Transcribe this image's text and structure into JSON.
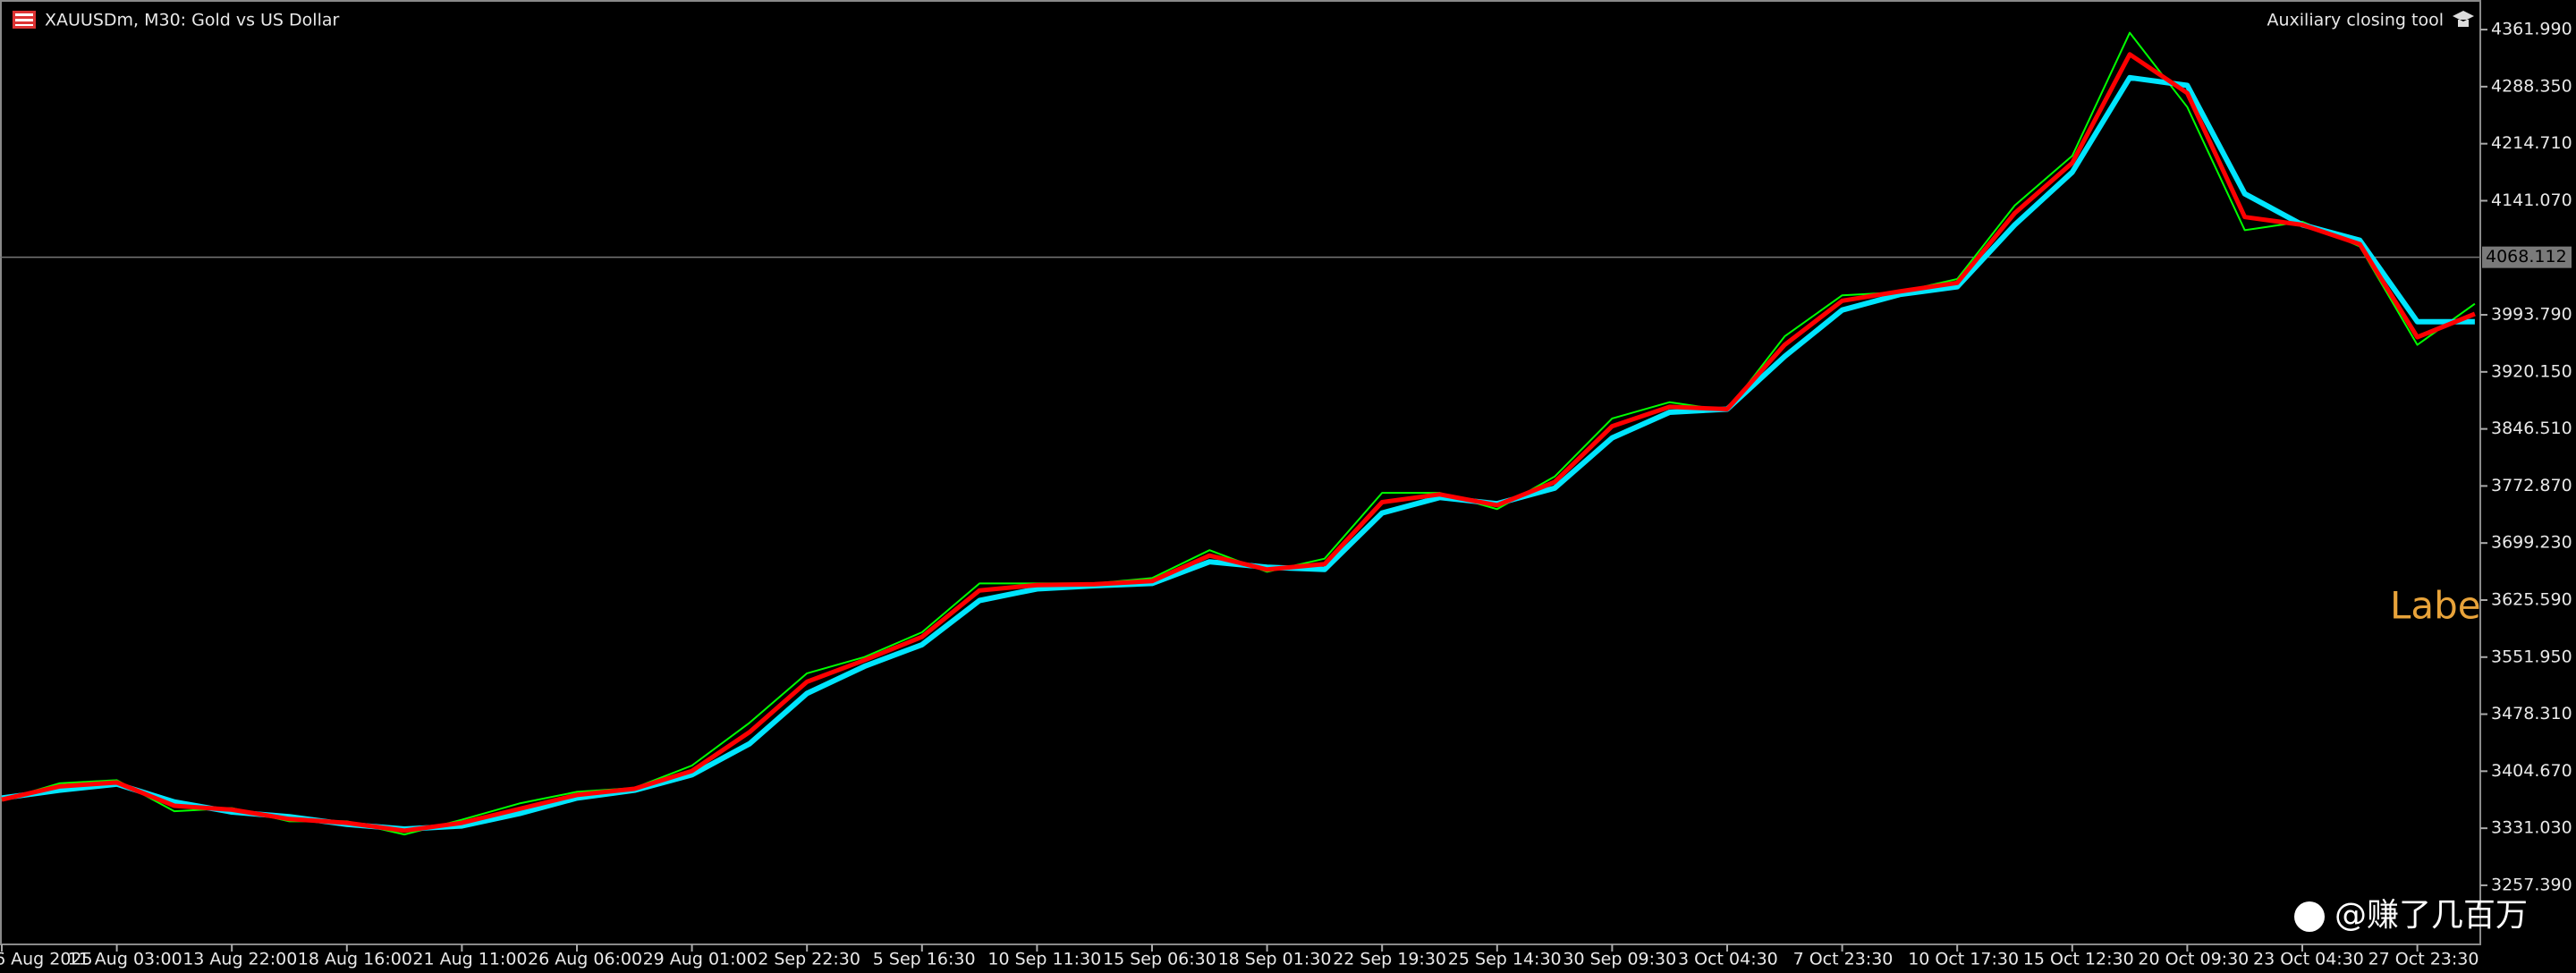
{
  "chart_data": {
    "type": "line",
    "title": "XAUUSDm, M30:  Gold vs US Dollar",
    "tool_label": "Auxiliary closing tool",
    "overlay_text": "Labe",
    "watermark": "@赚了几百万",
    "price_line": 4068.112,
    "categories": [
      "6 Aug 2025",
      null,
      "11 Aug 03:00",
      null,
      "13 Aug 22:00",
      null,
      "18 Aug 16:00",
      null,
      "21 Aug 11:00",
      null,
      "26 Aug 06:00",
      null,
      "29 Aug 01:00",
      null,
      "2 Sep 22:30",
      null,
      "5 Sep 16:30",
      null,
      "10 Sep 11:30",
      null,
      "15 Sep 06:30",
      null,
      "18 Sep 01:30",
      null,
      "22 Sep 19:30",
      null,
      "25 Sep 14:30",
      null,
      "30 Sep 09:30",
      null,
      "3 Oct 04:30",
      null,
      "7 Oct 23:30",
      null,
      "10 Oct 17:30",
      null,
      "15 Oct 12:30",
      null,
      "20 Oct 09:30",
      null,
      "23 Oct 04:30",
      null,
      "27 Oct 23:30",
      null
    ],
    "series": [
      {
        "color": "#00ff00",
        "values": [
          3367,
          3389,
          3393,
          3353,
          3357,
          3340,
          3340,
          3323,
          3342,
          3363,
          3378,
          3383,
          3412,
          3467,
          3531,
          3552,
          3584,
          3647,
          3647,
          3647,
          3654,
          3690,
          3662,
          3679,
          3764,
          3764,
          3743,
          3785,
          3860,
          3881,
          3870,
          3966,
          4019,
          4023,
          4040,
          4135,
          4199,
          4358,
          4262,
          4103,
          4114,
          4082,
          3955,
          4008
        ]
      },
      {
        "color": "#00e5ff",
        "values": [
          3370,
          3380,
          3388,
          3365,
          3352,
          3346,
          3336,
          3330,
          3334,
          3350,
          3370,
          3380,
          3400,
          3440,
          3505,
          3540,
          3568,
          3625,
          3640,
          3644,
          3647,
          3675,
          3668,
          3665,
          3738,
          3758,
          3750,
          3770,
          3835,
          3868,
          3872,
          3940,
          4000,
          4020,
          4030,
          4110,
          4178,
          4300,
          4290,
          4150,
          4110,
          4090,
          3985,
          3985
        ]
      },
      {
        "color": "#ff0000",
        "values": [
          3368,
          3385,
          3390,
          3360,
          3355,
          3343,
          3338,
          3328,
          3338,
          3356,
          3374,
          3382,
          3405,
          3455,
          3520,
          3548,
          3578,
          3638,
          3645,
          3646,
          3650,
          3683,
          3665,
          3672,
          3752,
          3762,
          3748,
          3778,
          3850,
          3875,
          3872,
          3955,
          4012,
          4024,
          4035,
          4125,
          4190,
          4330,
          4280,
          4120,
          4110,
          4085,
          3965,
          3995
        ]
      }
    ],
    "ylim": [
      3181.1,
      4400.2
    ],
    "yticks": [
      {
        "value": 3257.39,
        "label": "3257.390"
      },
      {
        "value": 3331.03,
        "label": "3331.030"
      },
      {
        "value": 3404.67,
        "label": "3404.670"
      },
      {
        "value": 3478.31,
        "label": "3478.310"
      },
      {
        "value": 3551.95,
        "label": "3551.950"
      },
      {
        "value": 3625.59,
        "label": "3625.590"
      },
      {
        "value": 3699.23,
        "label": "3699.230"
      },
      {
        "value": 3772.87,
        "label": "3772.870"
      },
      {
        "value": 3846.51,
        "label": "3846.510"
      },
      {
        "value": 3920.15,
        "label": "3920.150"
      },
      {
        "value": 3993.79,
        "label": "3993.790"
      },
      {
        "value": 4141.07,
        "label": "4141.070"
      },
      {
        "value": 4214.71,
        "label": "4214.710"
      },
      {
        "value": 4288.35,
        "label": "4288.350"
      },
      {
        "value": 4361.99,
        "label": "4361.990"
      }
    ]
  }
}
